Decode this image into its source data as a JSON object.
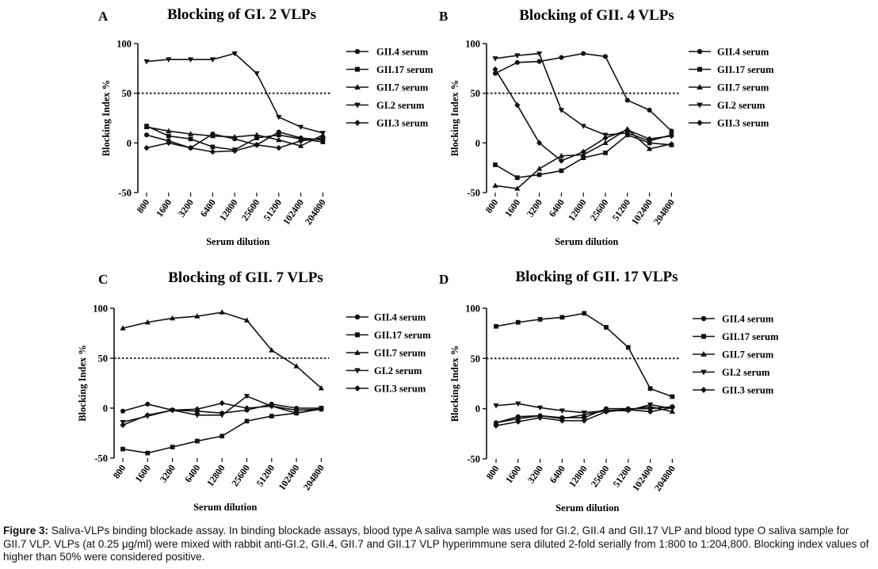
{
  "panels": [
    {
      "label": "A",
      "chart_data": {
        "type": "line",
        "title": "Blocking of  GI. 2 VLPs",
        "xlabel": "Serum dilution",
        "ylabel": "Blocking Index %",
        "categories": [
          "800",
          "1600",
          "3200",
          "6400",
          "12800",
          "25600",
          "51200",
          "102400",
          "204800"
        ],
        "ylim": [
          -50,
          100
        ],
        "yticks": [
          "100",
          "50",
          "0",
          "-50"
        ],
        "threshold": 50,
        "series": [
          {
            "name": "GII.4 serum",
            "marker": "circle",
            "values": [
              8,
              2,
              -5,
              9,
              4,
              -2,
              11,
              5,
              3
            ]
          },
          {
            "name": "GII.17 serum",
            "marker": "square",
            "values": [
              17,
              7,
              4,
              -4,
              -7,
              5,
              8,
              4,
              1
            ]
          },
          {
            "name": "GII.7 serum",
            "marker": "triangle-up",
            "values": [
              16,
              12,
              9,
              7,
              6,
              8,
              3,
              -3,
              8
            ]
          },
          {
            "name": "GI.2 serum",
            "marker": "triangle-down",
            "values": [
              82,
              84,
              84,
              84,
              90,
              70,
              26,
              16,
              10
            ]
          },
          {
            "name": "GII.3 serum",
            "marker": "diamond",
            "values": [
              -5,
              0,
              -5,
              -9,
              -8,
              -2,
              -5,
              2,
              5
            ]
          }
        ]
      }
    },
    {
      "label": "B",
      "chart_data": {
        "type": "line",
        "title": "Blocking of  GII. 4 VLPs",
        "xlabel": "Serum dilution",
        "ylabel": "Blocking Index %",
        "categories": [
          "800",
          "1600",
          "3200",
          "6400",
          "12800",
          "25600",
          "51200",
          "102400",
          "204800"
        ],
        "ylim": [
          -50,
          100
        ],
        "yticks": [
          "100",
          "50",
          "0",
          "-50"
        ],
        "threshold": 50,
        "series": [
          {
            "name": "GII.4 serum",
            "marker": "circle",
            "values": [
              70,
              81,
              82,
              86,
              90,
              87,
              43,
              33,
              12
            ]
          },
          {
            "name": "GII.17 serum",
            "marker": "square",
            "values": [
              -22,
              -35,
              -32,
              -28,
              -15,
              -10,
              8,
              0,
              -2
            ]
          },
          {
            "name": "GII.7 serum",
            "marker": "triangle-up",
            "values": [
              -43,
              -46,
              -26,
              -13,
              -12,
              0,
              14,
              -6,
              -1
            ]
          },
          {
            "name": "GI.2 serum",
            "marker": "triangle-down",
            "values": [
              85,
              88,
              90,
              33,
              17,
              8,
              10,
              2,
              8
            ]
          },
          {
            "name": "GII.3 serum",
            "marker": "diamond",
            "values": [
              74,
              38,
              0,
              -18,
              -9,
              5,
              13,
              4,
              7
            ]
          }
        ]
      }
    },
    {
      "label": "C",
      "chart_data": {
        "type": "line",
        "title": "Blocking of  GII. 7 VLPs",
        "xlabel": "Serum dilution",
        "ylabel": "Blocking Index %",
        "categories": [
          "800",
          "1600",
          "3200",
          "6400",
          "12800",
          "25600",
          "51200",
          "102400",
          "204800"
        ],
        "ylim": [
          -50,
          100
        ],
        "yticks": [
          "100",
          "50",
          "0",
          "-50"
        ],
        "threshold": 50,
        "series": [
          {
            "name": "GII.4 serum",
            "marker": "circle",
            "values": [
              -3,
              4,
              -2,
              -3,
              -5,
              -2,
              4,
              0,
              0
            ]
          },
          {
            "name": "GII.17 serum",
            "marker": "square",
            "values": [
              -41,
              -45,
              -39,
              -33,
              -28,
              -13,
              -8,
              -5,
              -1
            ]
          },
          {
            "name": "GII.7 serum",
            "marker": "triangle-up",
            "values": [
              80,
              86,
              90,
              92,
              96,
              88,
              58,
              42,
              20
            ]
          },
          {
            "name": "GI.2 serum",
            "marker": "triangle-down",
            "values": [
              -14,
              -8,
              -2,
              -7,
              -7,
              12,
              2,
              -5,
              0
            ]
          },
          {
            "name": "GII.3 serum",
            "marker": "diamond",
            "values": [
              -17,
              -7,
              -2,
              -1,
              5,
              0,
              2,
              -2,
              -1
            ]
          }
        ]
      }
    },
    {
      "label": "D",
      "chart_data": {
        "type": "line",
        "title": "Blocking of  GII. 17 VLPs",
        "xlabel": "Serum dilution",
        "ylabel": "Blocking Index %",
        "categories": [
          "800",
          "1600",
          "3200",
          "6400",
          "12800",
          "25600",
          "51200",
          "102400",
          "204800"
        ],
        "ylim": [
          -50,
          100
        ],
        "yticks": [
          "100",
          "50",
          "0",
          "-50"
        ],
        "threshold": 50,
        "series": [
          {
            "name": "GII.4 serum",
            "marker": "circle",
            "values": [
              -14,
              -8,
              -7,
              -9,
              -9,
              0,
              0,
              0,
              2
            ]
          },
          {
            "name": "GII.17 serum",
            "marker": "square",
            "values": [
              82,
              86,
              89,
              91,
              95,
              81,
              61,
              20,
              12
            ]
          },
          {
            "name": "GII.7 serum",
            "marker": "triangle-up",
            "values": [
              -14,
              -10,
              -7,
              -10,
              -6,
              -2,
              -1,
              2,
              -3
            ]
          },
          {
            "name": "GI.2 serum",
            "marker": "triangle-down",
            "values": [
              3,
              5,
              1,
              -2,
              -4,
              -2,
              -2,
              4,
              0
            ]
          },
          {
            "name": "GII.3 serum",
            "marker": "diamond",
            "values": [
              -17,
              -13,
              -9,
              -12,
              -12,
              -3,
              -1,
              -3,
              1
            ]
          }
        ]
      }
    }
  ],
  "caption": {
    "label": "Figure 3:",
    "text": " Saliva-VLPs binding blockade assay. In binding blockade assays, blood type A  saliva sample was used for GI.2, GII.4 and GII.17 VLP and blood type O saliva sample for GII.7 VLP. VLPs (at 0.25 μg/ml) were mixed with rabbit anti-GI.2, GII.4, GII.7 and GII.17 VLP hyperimmune sera diluted 2-fold serially from 1:800 to 1:204,800. Blocking index values of higher than 50% were considered positive."
  }
}
